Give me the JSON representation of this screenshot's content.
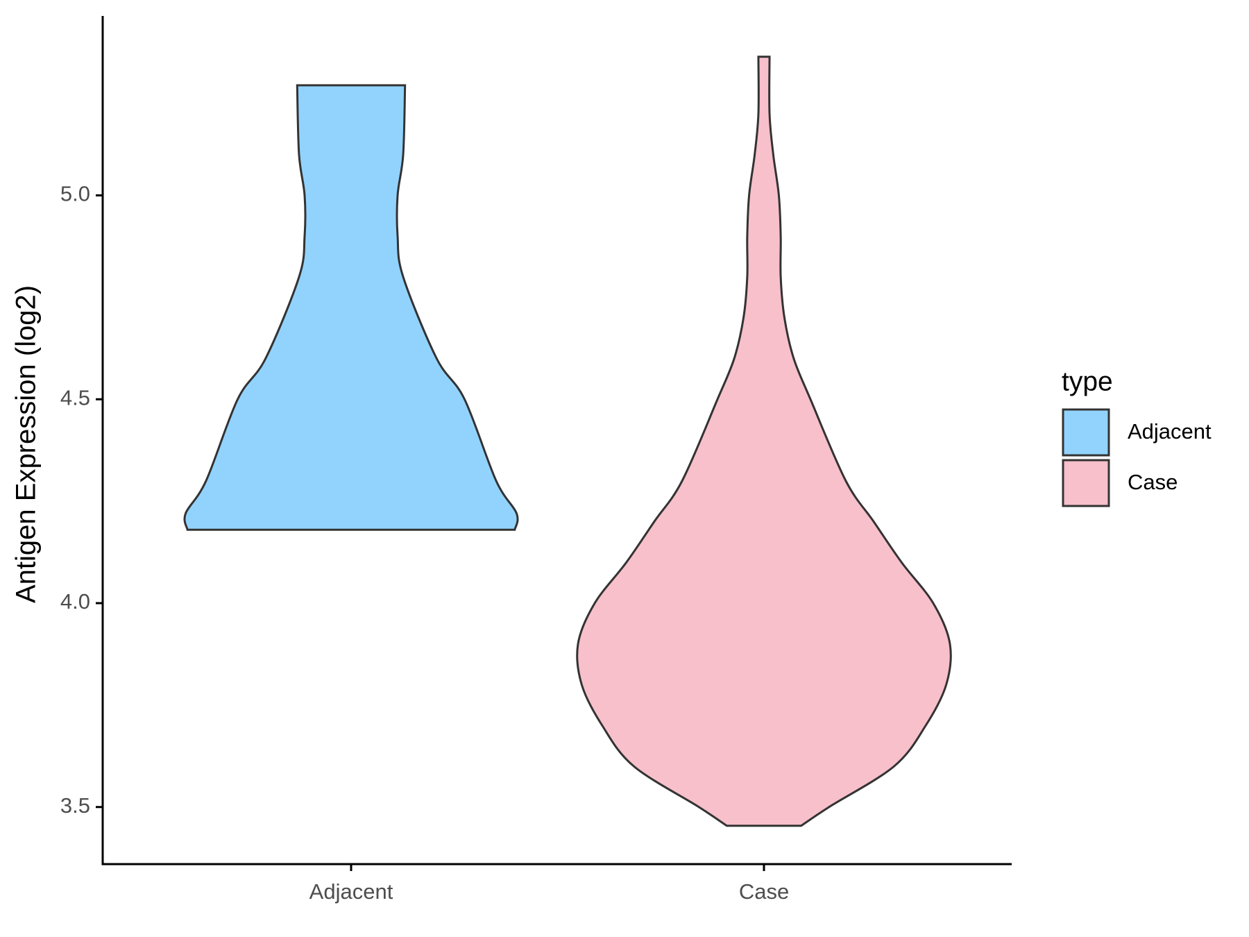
{
  "chart_data": {
    "type": "violin",
    "y_label": "Antigen Expression (log2)",
    "categories": [
      "Adjacent",
      "Case"
    ],
    "legend_title": "type",
    "legend_position": "right",
    "ylim": [
      3.36,
      5.44
    ],
    "yticks": [
      {
        "value": 3.5,
        "label": "3.5"
      },
      {
        "value": 4.0,
        "label": "4.0"
      },
      {
        "value": 4.5,
        "label": "4.5"
      },
      {
        "value": 5.0,
        "label": "5.0"
      }
    ],
    "series": [
      {
        "name": "Adjacent",
        "color": "#92d3fe",
        "y": [
          4.18,
          4.22,
          4.3,
          4.5,
          4.6,
          4.8,
          4.9,
          5.0,
          5.1,
          5.27
        ],
        "density": [
          0.88,
          0.89,
          0.78,
          0.61,
          0.46,
          0.28,
          0.25,
          0.25,
          0.28,
          0.29
        ]
      },
      {
        "name": "Case",
        "color": "#f7c0cb",
        "y": [
          3.454,
          3.5,
          3.6,
          3.7,
          3.8,
          3.9,
          4.0,
          4.1,
          4.2,
          4.3,
          4.5,
          4.6,
          4.7,
          4.8,
          4.9,
          5.0,
          5.1,
          5.2,
          5.34
        ],
        "density": [
          0.2,
          0.35,
          0.7,
          0.87,
          0.98,
          1.0,
          0.91,
          0.74,
          0.59,
          0.44,
          0.25,
          0.16,
          0.11,
          0.09,
          0.09,
          0.08,
          0.05,
          0.03,
          0.03
        ]
      }
    ]
  }
}
